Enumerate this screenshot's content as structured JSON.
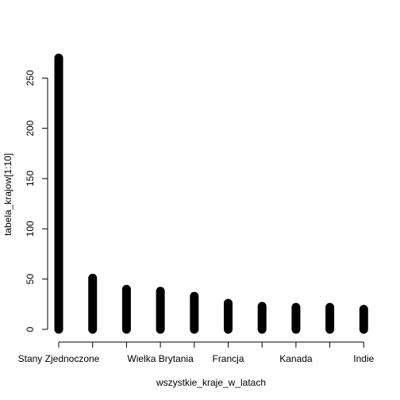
{
  "chart_data": {
    "type": "bar",
    "title": "",
    "xlabel": "wszystkie_kraje_w_latach",
    "ylabel": "tabela_krajow[1:10]",
    "ylim": [
      0,
      270
    ],
    "yticks": [
      0,
      50,
      100,
      150,
      200,
      250
    ],
    "categories": [
      "Stany Zjednoczone",
      "",
      "",
      "Wielka Brytania",
      "",
      "Francja",
      "",
      "Kanada",
      "",
      "Indie"
    ],
    "values": [
      270,
      51,
      40,
      38,
      33,
      26,
      23,
      22,
      22,
      20
    ],
    "grid": false,
    "legend": "none",
    "bar_color": "#000000"
  }
}
